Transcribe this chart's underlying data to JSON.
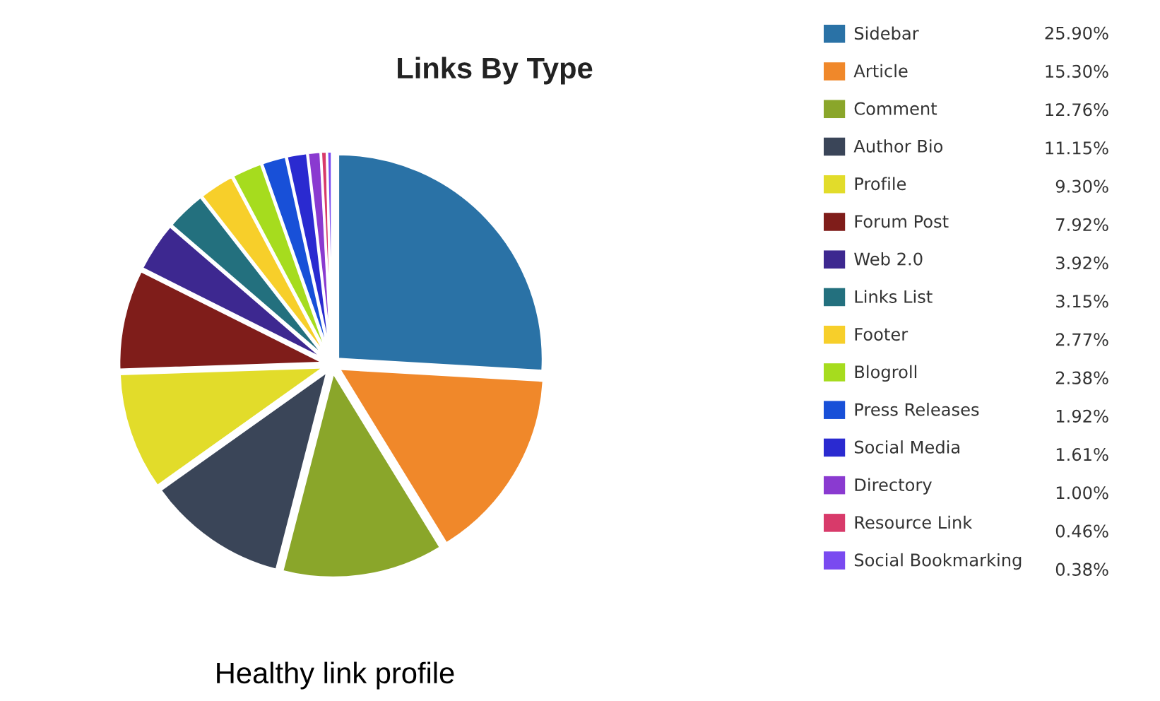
{
  "chart_data": {
    "type": "pie",
    "title": "Links By Type",
    "categories": [
      "Sidebar",
      "Article",
      "Comment",
      "Author Bio",
      "Profile",
      "Forum Post",
      "Web 2.0",
      "Links List",
      "Footer",
      "Blogroll",
      "Press Releases",
      "Social Media",
      "Directory",
      "Resource Link",
      "Social Bookmarking"
    ],
    "values": [
      25.9,
      15.3,
      12.76,
      11.15,
      9.3,
      7.92,
      3.92,
      3.15,
      2.77,
      2.38,
      1.92,
      1.61,
      1.0,
      0.46,
      0.38
    ],
    "value_labels": [
      "25.90%",
      "15.30%",
      "12.76%",
      "11.15%",
      "9.30%",
      "7.92%",
      "3.92%",
      "3.15%",
      "2.77%",
      "2.38%",
      "1.92%",
      "1.61%",
      "1.00%",
      "0.46%",
      "0.38%"
    ],
    "colors": [
      "#2a72a6",
      "#f0882a",
      "#8aa62a",
      "#3a4558",
      "#e2dc2a",
      "#7f1d1a",
      "#3d2890",
      "#23707e",
      "#f7cf2a",
      "#a6dc1e",
      "#1850d8",
      "#2a2ad0",
      "#8a3ad0",
      "#d83a6a",
      "#7a4af0"
    ],
    "legend": "right",
    "annotations": [
      "Healthy link profile"
    ]
  }
}
